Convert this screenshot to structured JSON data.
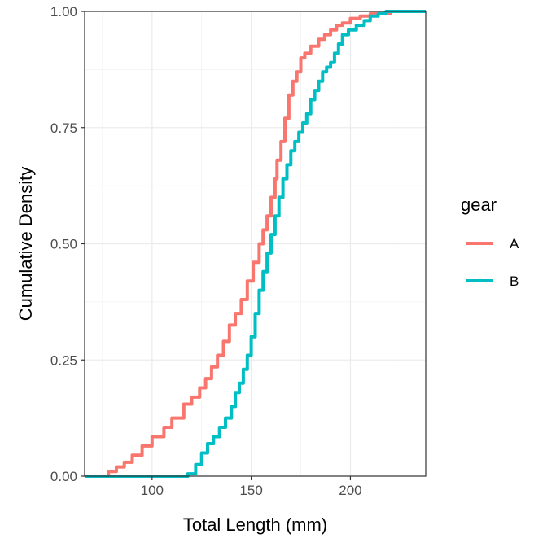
{
  "chart_data": {
    "type": "line",
    "title": "",
    "xlabel": "Total Length (mm)",
    "ylabel": "Cumulative Density",
    "xlim": [
      66,
      238
    ],
    "ylim": [
      0,
      1
    ],
    "x_ticks": [
      100,
      150,
      200
    ],
    "x_tick_labels": [
      "100",
      "150",
      "200"
    ],
    "y_ticks": [
      0,
      0.25,
      0.5,
      0.75,
      1
    ],
    "y_tick_labels": [
      "0.00",
      "0.25",
      "0.50",
      "0.75",
      "1.00"
    ],
    "grid": true,
    "legend": {
      "title": "gear",
      "position": "right"
    },
    "series": [
      {
        "name": "A",
        "color": "#F8766D",
        "points": [
          [
            66,
            0
          ],
          [
            75,
            0
          ],
          [
            78,
            0.01
          ],
          [
            82,
            0.02
          ],
          [
            86,
            0.03
          ],
          [
            90,
            0.045
          ],
          [
            95,
            0.065
          ],
          [
            100,
            0.085
          ],
          [
            106,
            0.105
          ],
          [
            110,
            0.125
          ],
          [
            116,
            0.155
          ],
          [
            120,
            0.17
          ],
          [
            124,
            0.19
          ],
          [
            127,
            0.21
          ],
          [
            130,
            0.235
          ],
          [
            133,
            0.26
          ],
          [
            136,
            0.29
          ],
          [
            139,
            0.325
          ],
          [
            142,
            0.35
          ],
          [
            145,
            0.38
          ],
          [
            148,
            0.42
          ],
          [
            151,
            0.46
          ],
          [
            154,
            0.5
          ],
          [
            156,
            0.53
          ],
          [
            158,
            0.56
          ],
          [
            160,
            0.6
          ],
          [
            162,
            0.64
          ],
          [
            163,
            0.68
          ],
          [
            165,
            0.72
          ],
          [
            167,
            0.77
          ],
          [
            169,
            0.82
          ],
          [
            171,
            0.85
          ],
          [
            173,
            0.87
          ],
          [
            175,
            0.9
          ],
          [
            177,
            0.91
          ],
          [
            180,
            0.925
          ],
          [
            184,
            0.94
          ],
          [
            187,
            0.95
          ],
          [
            190,
            0.96
          ],
          [
            193,
            0.97
          ],
          [
            196,
            0.975
          ],
          [
            200,
            0.985
          ],
          [
            205,
            0.99
          ],
          [
            210,
            0.995
          ],
          [
            220,
            1
          ],
          [
            238,
            1
          ]
        ]
      },
      {
        "name": "B",
        "color": "#00BFC4",
        "points": [
          [
            66,
            0
          ],
          [
            118,
            0.005
          ],
          [
            120,
            0.005
          ],
          [
            122,
            0.025
          ],
          [
            125,
            0.05
          ],
          [
            128,
            0.07
          ],
          [
            131,
            0.085
          ],
          [
            134,
            0.105
          ],
          [
            137,
            0.125
          ],
          [
            140,
            0.15
          ],
          [
            142,
            0.18
          ],
          [
            144,
            0.2
          ],
          [
            146,
            0.23
          ],
          [
            148,
            0.26
          ],
          [
            150,
            0.3
          ],
          [
            152,
            0.35
          ],
          [
            154,
            0.4
          ],
          [
            156,
            0.44
          ],
          [
            158,
            0.48
          ],
          [
            160,
            0.52
          ],
          [
            162,
            0.56
          ],
          [
            164,
            0.6
          ],
          [
            166,
            0.64
          ],
          [
            168,
            0.67
          ],
          [
            170,
            0.7
          ],
          [
            172,
            0.72
          ],
          [
            174,
            0.74
          ],
          [
            176,
            0.76
          ],
          [
            178,
            0.78
          ],
          [
            180,
            0.81
          ],
          [
            182,
            0.83
          ],
          [
            184,
            0.85
          ],
          [
            186,
            0.87
          ],
          [
            188,
            0.88
          ],
          [
            190,
            0.89
          ],
          [
            192,
            0.91
          ],
          [
            194,
            0.93
          ],
          [
            196,
            0.95
          ],
          [
            199,
            0.96
          ],
          [
            203,
            0.97
          ],
          [
            207,
            0.98
          ],
          [
            210,
            0.99
          ],
          [
            214,
            0.995
          ],
          [
            218,
            1
          ],
          [
            238,
            1
          ]
        ]
      }
    ]
  }
}
